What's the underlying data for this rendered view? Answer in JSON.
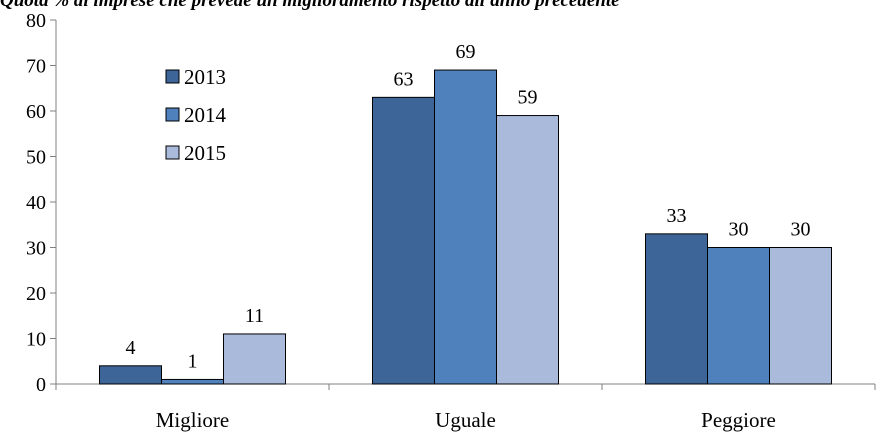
{
  "caption": "Quota % di imprese che prevede un miglioramento rispetto all'anno precedente",
  "chart_data": {
    "type": "bar",
    "title": "",
    "xlabel": "",
    "ylabel": "",
    "categories": [
      "Migliore",
      "Uguale",
      "Peggiore"
    ],
    "series": [
      {
        "name": "2013",
        "values": [
          4,
          63,
          33
        ],
        "color": "#3e6598"
      },
      {
        "name": "2014",
        "values": [
          1,
          69,
          30
        ],
        "color": "#4f81bd"
      },
      {
        "name": "2015",
        "values": [
          11,
          59,
          30
        ],
        "color": "#a9badb"
      }
    ],
    "ylim": [
      0,
      80
    ],
    "yticks": [
      0,
      10,
      20,
      30,
      40,
      50,
      60,
      70,
      80
    ],
    "grid": false,
    "legend_position": "top-left"
  }
}
